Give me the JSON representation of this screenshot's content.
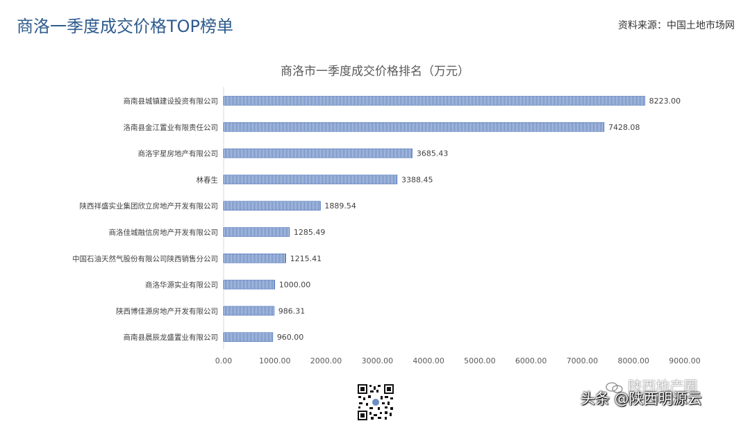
{
  "header": {
    "title": "商洛一季度成交价格TOP榜单",
    "source": "资料来源：中国土地市场网"
  },
  "chart_data": {
    "type": "bar",
    "orientation": "horizontal",
    "title": "商洛市一季度成交价格排名（万元）",
    "categories": [
      "商南县城镇建设投资有限公司",
      "洛南县金江置业有限责任公司",
      "商洛宇星房地产有限公司",
      "林春生",
      "陕西祥盛实业集团欣立房地产开发有限公司",
      "商洛佳城融信房地产开发有限公司",
      "中国石油天然气股份有限公司陕西销售分公司",
      "商洛华源实业有限公司",
      "陕西博佳源房地产开发有限公司",
      "商南县晨辰龙盛置业有限公司"
    ],
    "values": [
      8223.0,
      7428.08,
      3685.43,
      3388.45,
      1889.54,
      1285.49,
      1215.41,
      1000.0,
      986.31,
      960.0
    ],
    "value_labels": [
      "8223.00",
      "7428.08",
      "3685.43",
      "3388.45",
      "1889.54",
      "1285.49",
      "1215.41",
      "1000.00",
      "986.31",
      "960.00"
    ],
    "xlim": [
      0,
      9000
    ],
    "ticks": [
      "0.00",
      "1000.00",
      "2000.00",
      "3000.00",
      "4000.00",
      "5000.00",
      "6000.00",
      "7000.00",
      "8000.00",
      "9000.00"
    ],
    "grid": false,
    "bar_color": "#4a72b8",
    "xlabel": "",
    "ylabel": ""
  },
  "watermark": {
    "upper": "陕西地产圈",
    "lower": "头条 @陕西明源云",
    "upper_icon": "wechat-icon"
  },
  "qr": {
    "icon": "qr-code-icon"
  }
}
